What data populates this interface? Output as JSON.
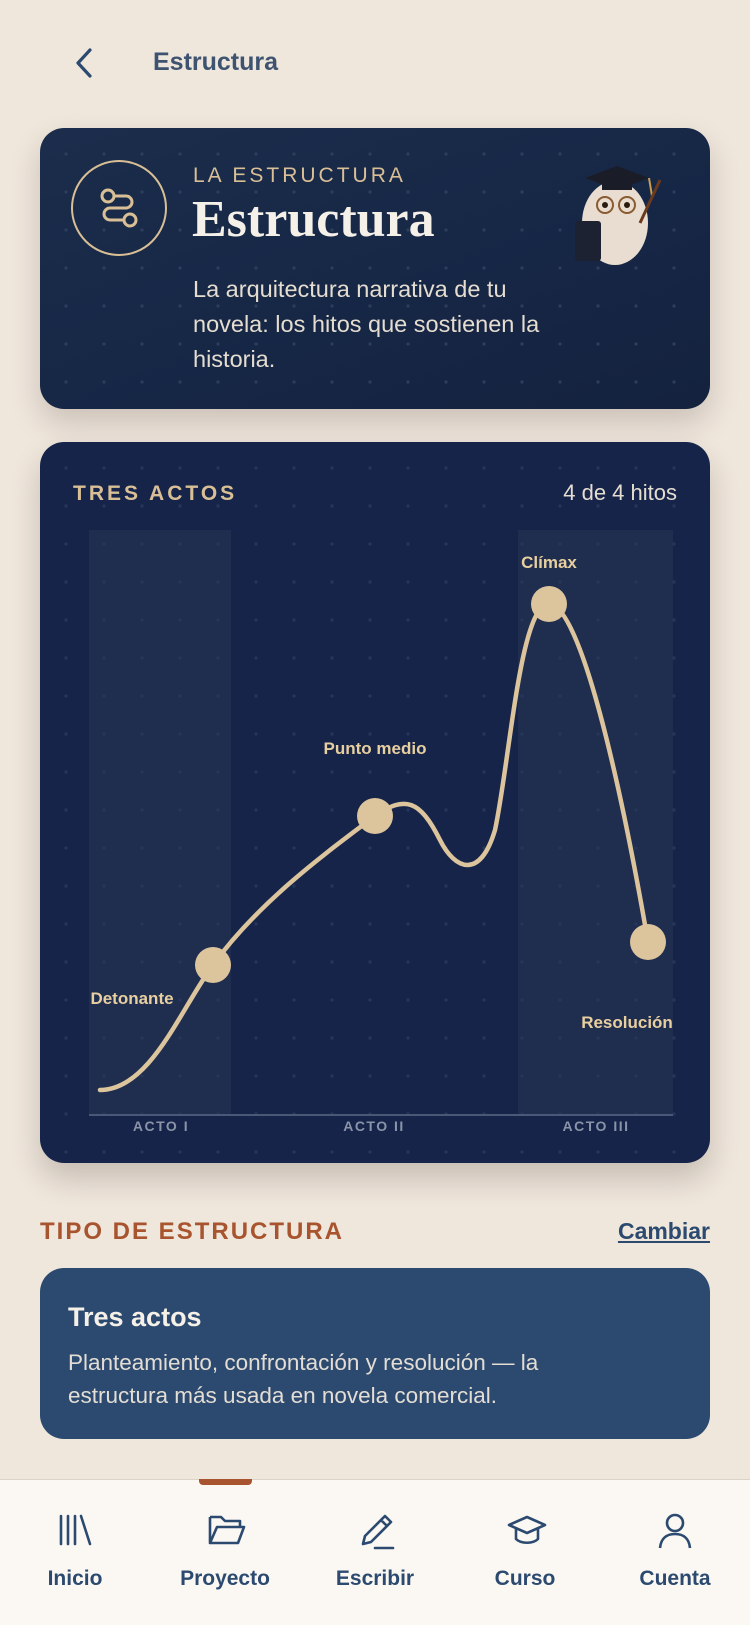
{
  "header": {
    "title": "Estructura"
  },
  "hero": {
    "eyebrow": "LA ESTRUCTURA",
    "title": "Estructura",
    "description": "La arquitectura narrativa de tu novela: los hitos que sostienen la historia."
  },
  "structure_chart": {
    "title": "TRES ACTOS",
    "progress": "4 de 4 hitos",
    "milestones": [
      "Detonante",
      "Punto medio",
      "Clímax",
      "Resolución"
    ],
    "acts": [
      "ACTO I",
      "ACTO II",
      "ACTO III"
    ]
  },
  "structure_type": {
    "heading": "TIPO DE ESTRUCTURA",
    "action": "Cambiar",
    "name": "Tres actos",
    "description": "Planteamiento, confrontación y resolución — la estructura más usada en novela comercial."
  },
  "tab_bar": [
    "Inicio",
    "Proyecto",
    "Escribir",
    "Curso",
    "Cuenta"
  ]
}
